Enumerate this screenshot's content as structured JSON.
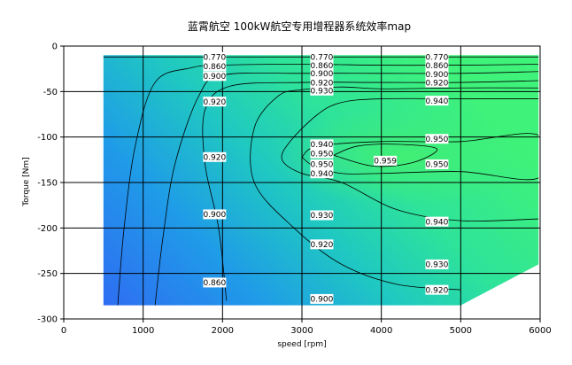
{
  "chart_data": {
    "type": "contour",
    "title": "蓝霄航空 100kW航空专用增程器系统效率map",
    "xlabel": "speed [rpm]",
    "ylabel": "Torque [Nm]",
    "xlim": [
      0,
      6000
    ],
    "ylim": [
      -300,
      0
    ],
    "xticks": [
      0,
      1000,
      2000,
      3000,
      4000,
      5000,
      6000
    ],
    "yticks": [
      0,
      -50,
      -100,
      -150,
      -200,
      -250,
      -300
    ],
    "grid": true,
    "colormap": [
      "#2f6df2",
      "#1f9be8",
      "#1fc9c1",
      "#2ee39a",
      "#3ef27a"
    ],
    "data_region": [
      [
        500,
        -10
      ],
      [
        5980,
        -10
      ],
      [
        5980,
        -240
      ],
      [
        5000,
        -285
      ],
      [
        500,
        -285
      ]
    ],
    "levels": [
      {
        "level": 0.77,
        "label": "0.770",
        "points": [
          [
            500,
            -12
          ],
          [
            2000,
            -12
          ],
          [
            3000,
            -12
          ],
          [
            4000,
            -12
          ],
          [
            5000,
            -12
          ],
          [
            5980,
            -12
          ]
        ]
      },
      {
        "level": 0.86,
        "label": "0.860",
        "points": [
          [
            680,
            -285
          ],
          [
            760,
            -200
          ],
          [
            900,
            -110
          ],
          [
            1150,
            -40
          ],
          [
            1600,
            -24
          ],
          [
            2000,
            -21
          ],
          [
            3000,
            -20
          ],
          [
            4000,
            -21
          ],
          [
            5000,
            -21
          ],
          [
            5980,
            -20
          ]
        ]
      },
      {
        "level": 0.9,
        "label": "0.900",
        "points": [
          [
            1150,
            -285
          ],
          [
            1250,
            -210
          ],
          [
            1400,
            -130
          ],
          [
            1700,
            -55
          ],
          [
            2000,
            -32
          ],
          [
            3000,
            -30
          ],
          [
            4000,
            -30
          ],
          [
            5000,
            -30
          ],
          [
            5980,
            -28
          ]
        ]
      },
      {
        "level": 0.92,
        "label": "0.920",
        "points": [
          [
            2050,
            -280
          ],
          [
            1950,
            -200
          ],
          [
            1780,
            -130
          ],
          [
            1780,
            -70
          ],
          [
            2100,
            -44
          ],
          [
            3000,
            -40
          ],
          [
            4000,
            -40
          ],
          [
            5000,
            -40
          ],
          [
            5980,
            -38
          ]
        ]
      },
      {
        "level": 0.93,
        "label": "0.930",
        "points": [
          [
            5000,
            -268
          ],
          [
            4200,
            -262
          ],
          [
            3500,
            -240
          ],
          [
            2900,
            -200
          ],
          [
            2400,
            -150
          ],
          [
            2400,
            -90
          ],
          [
            2700,
            -55
          ],
          [
            3000,
            -48
          ],
          [
            3500,
            -45
          ],
          [
            4000,
            -47
          ],
          [
            5000,
            -46
          ],
          [
            5980,
            -46
          ]
        ]
      },
      {
        "level": 0.94,
        "label": "0.940",
        "points": [
          [
            5980,
            -190
          ],
          [
            5000,
            -192
          ],
          [
            4200,
            -180
          ],
          [
            3500,
            -150
          ],
          [
            3000,
            -140
          ],
          [
            2750,
            -125
          ],
          [
            2850,
            -105
          ],
          [
            3200,
            -75
          ],
          [
            3500,
            -62
          ],
          [
            4000,
            -58
          ],
          [
            5000,
            -58
          ],
          [
            5980,
            -58
          ]
        ]
      },
      {
        "level": 0.95,
        "label": "0.950",
        "points": [
          [
            3000,
            -122
          ],
          [
            3200,
            -110
          ],
          [
            4000,
            -105
          ],
          [
            5000,
            -105
          ],
          [
            5980,
            -98
          ],
          [
            5980,
            -145
          ],
          [
            5000,
            -138
          ],
          [
            4000,
            -140
          ],
          [
            3500,
            -140
          ],
          [
            3150,
            -132
          ],
          [
            3000,
            -122
          ]
        ]
      },
      {
        "level": 0.959,
        "label": "0.959",
        "points": [
          [
            3400,
            -120
          ],
          [
            3700,
            -110
          ],
          [
            4200,
            -108
          ],
          [
            4700,
            -113
          ],
          [
            4400,
            -128
          ],
          [
            3900,
            -132
          ],
          [
            3400,
            -120
          ]
        ]
      }
    ],
    "labels": [
      {
        "text": "0.770",
        "x": 1900,
        "y": -12
      },
      {
        "text": "0.860",
        "x": 1900,
        "y": -22
      },
      {
        "text": "0.900",
        "x": 1900,
        "y": -33
      },
      {
        "text": "0.920",
        "x": 1900,
        "y": -61
      },
      {
        "text": "0.920",
        "x": 1900,
        "y": -122
      },
      {
        "text": "0.900",
        "x": 1900,
        "y": -185
      },
      {
        "text": "0.860",
        "x": 1900,
        "y": -260
      },
      {
        "text": "0.770",
        "x": 3250,
        "y": -12
      },
      {
        "text": "0.860",
        "x": 3250,
        "y": -21
      },
      {
        "text": "0.900",
        "x": 3250,
        "y": -30
      },
      {
        "text": "0.920",
        "x": 3250,
        "y": -40
      },
      {
        "text": "0.930",
        "x": 3250,
        "y": -49
      },
      {
        "text": "0.940",
        "x": 3250,
        "y": -108
      },
      {
        "text": "0.950",
        "x": 3250,
        "y": -118
      },
      {
        "text": "0.950",
        "x": 3250,
        "y": -130
      },
      {
        "text": "0.940",
        "x": 3250,
        "y": -140
      },
      {
        "text": "0.930",
        "x": 3250,
        "y": -186
      },
      {
        "text": "0.920",
        "x": 3250,
        "y": -218
      },
      {
        "text": "0.900",
        "x": 3250,
        "y": -278
      },
      {
        "text": "0.959",
        "x": 4050,
        "y": -126
      },
      {
        "text": "0.770",
        "x": 4700,
        "y": -12
      },
      {
        "text": "0.860",
        "x": 4700,
        "y": -21
      },
      {
        "text": "0.900",
        "x": 4700,
        "y": -31
      },
      {
        "text": "0.920",
        "x": 4700,
        "y": -40
      },
      {
        "text": "0.940",
        "x": 4700,
        "y": -60
      },
      {
        "text": "0.950",
        "x": 4700,
        "y": -102
      },
      {
        "text": "0.950",
        "x": 4700,
        "y": -130
      },
      {
        "text": "0.940",
        "x": 4700,
        "y": -193
      },
      {
        "text": "0.930",
        "x": 4700,
        "y": -240
      },
      {
        "text": "0.920",
        "x": 4700,
        "y": -268
      }
    ]
  }
}
